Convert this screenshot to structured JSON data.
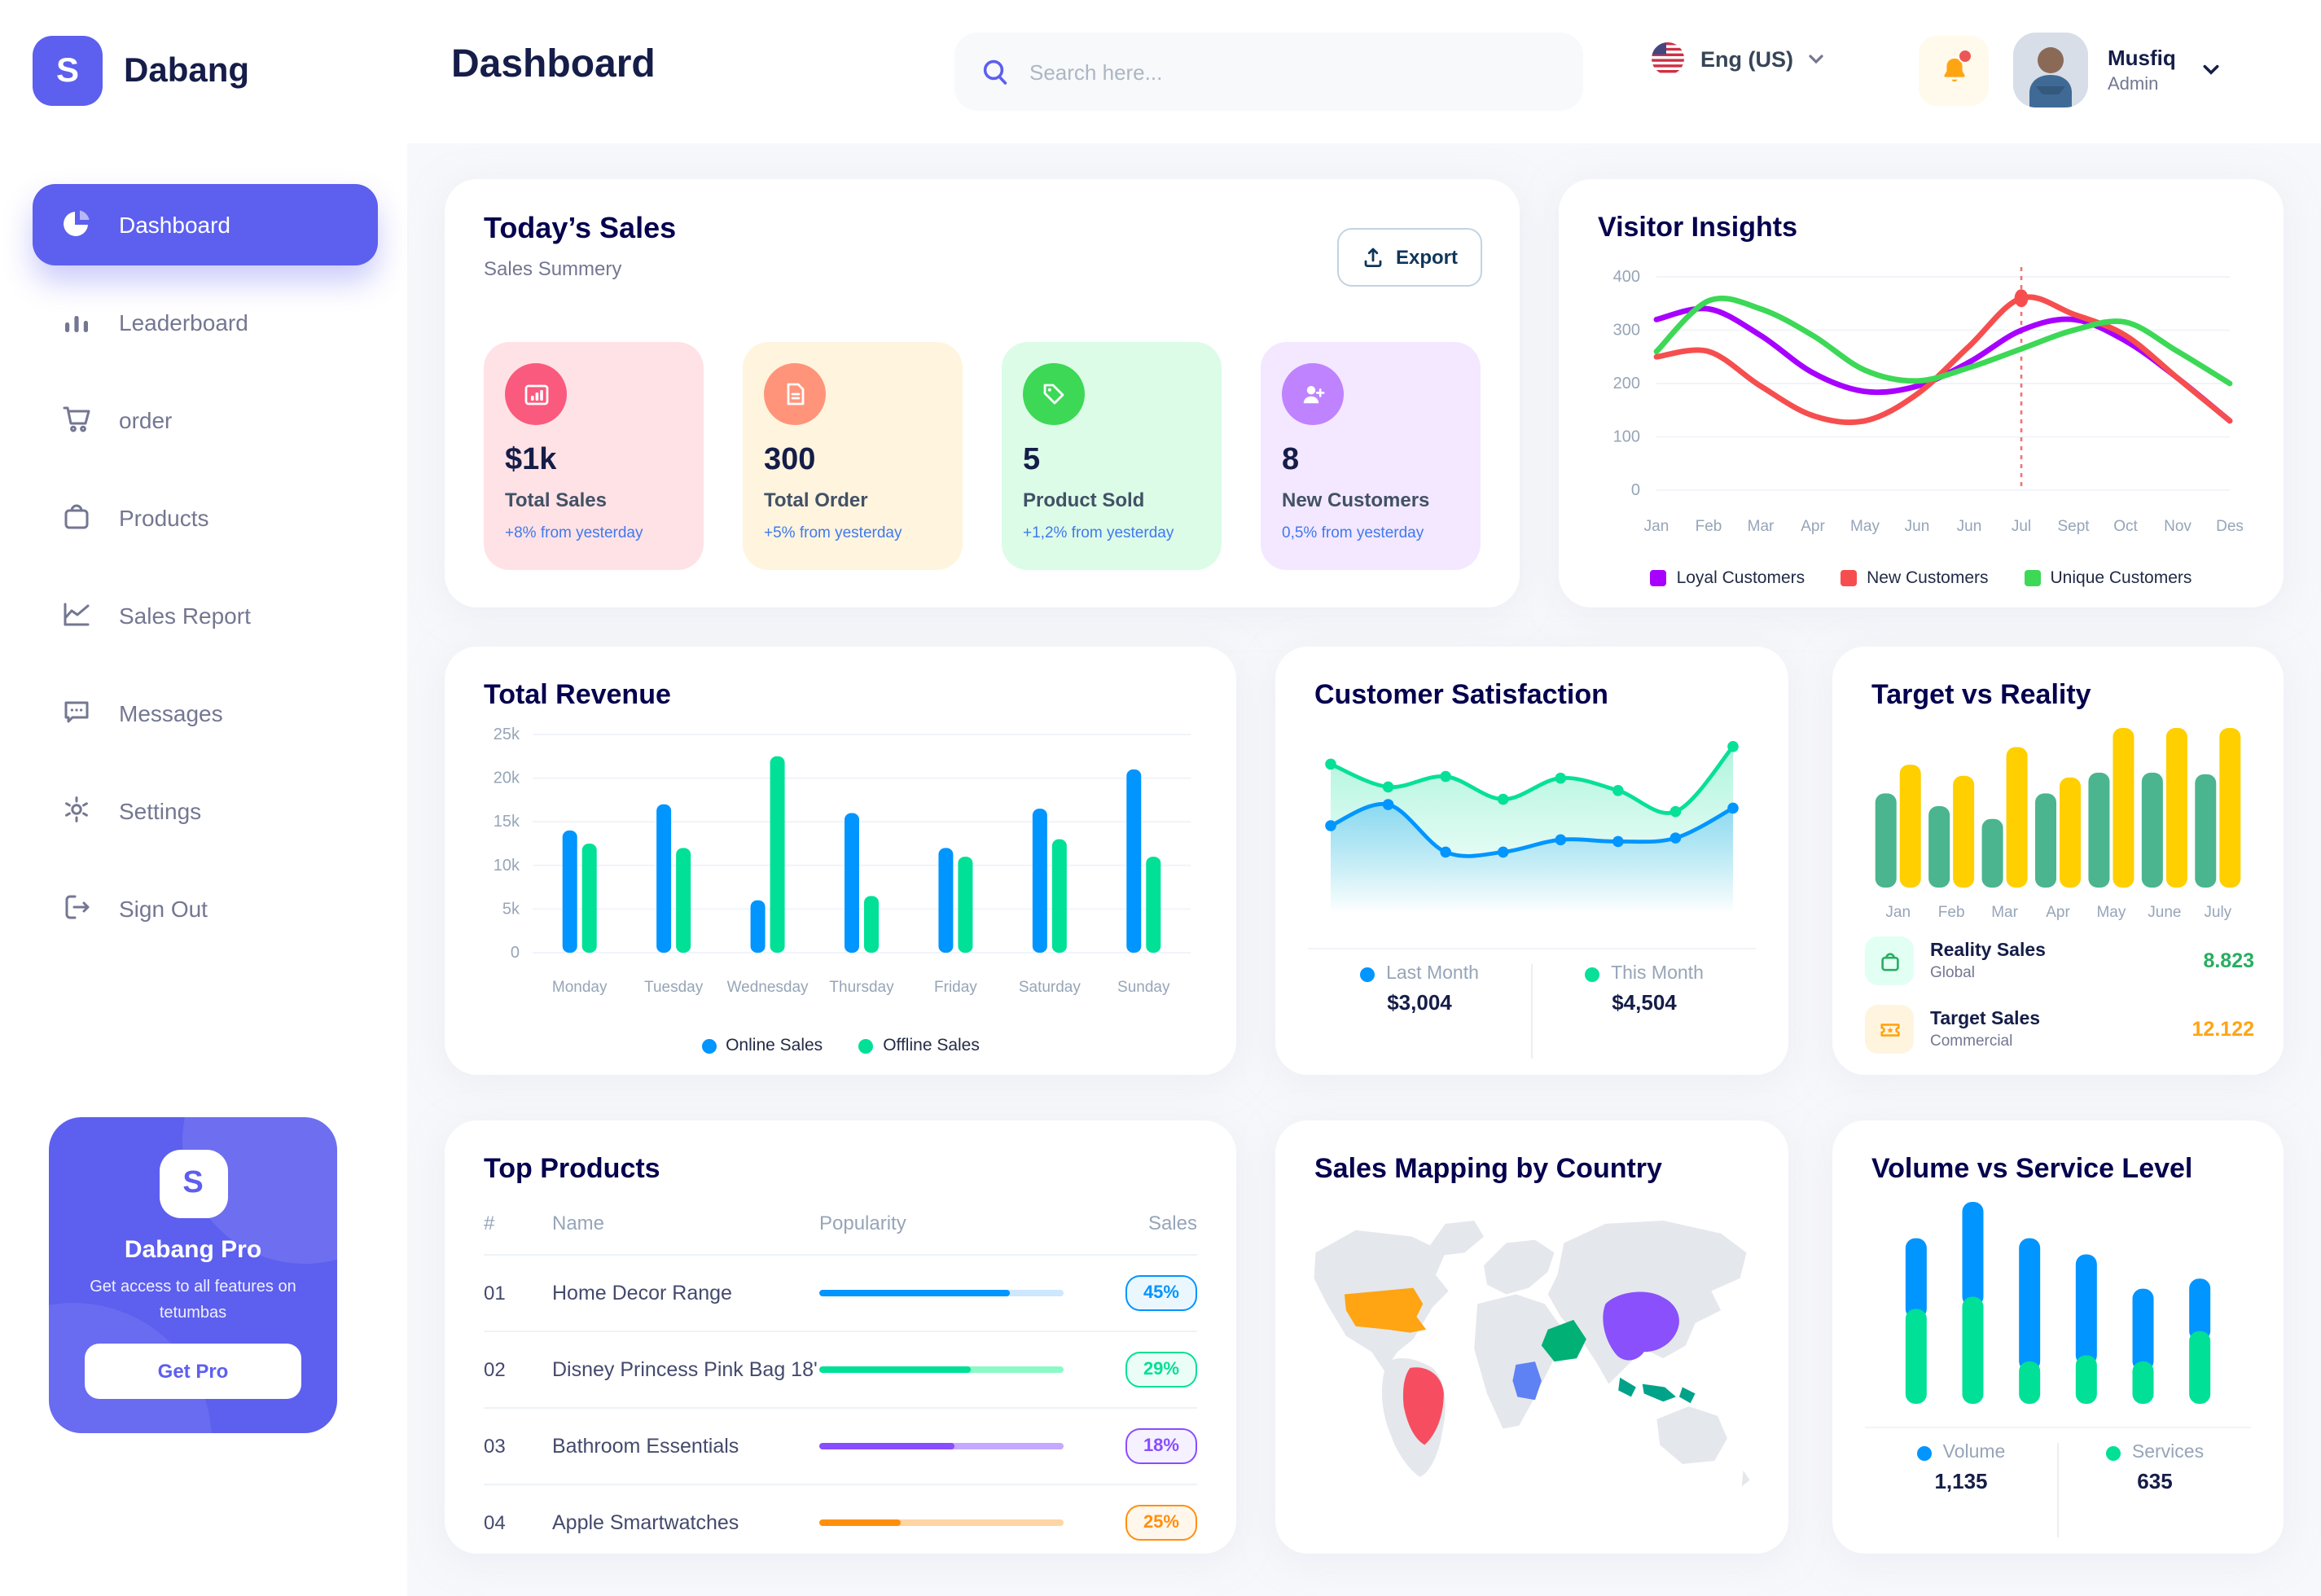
{
  "app": {
    "brand": "Dabang"
  },
  "header": {
    "page_title": "Dashboard",
    "search_placeholder": "Search here...",
    "language": "Eng (US)",
    "user": {
      "name": "Musfiq",
      "role": "Admin"
    }
  },
  "sidebar": {
    "items": [
      {
        "label": "Dashboard"
      },
      {
        "label": "Leaderboard"
      },
      {
        "label": "order"
      },
      {
        "label": "Products"
      },
      {
        "label": "Sales Report"
      },
      {
        "label": "Messages"
      },
      {
        "label": "Settings"
      },
      {
        "label": "Sign Out"
      }
    ],
    "promo": {
      "title": "Dabang Pro",
      "subtitle": "Get access to all features on tetumbas",
      "cta": "Get Pro"
    }
  },
  "today_sales": {
    "title": "Today’s Sales",
    "subtitle": "Sales Summery",
    "export_label": "Export",
    "delta_color": "#4079ED",
    "cards": [
      {
        "value": "$1k",
        "label": "Total Sales",
        "delta": "+8% from yesterday",
        "bg": "#FFE2E5",
        "icon_bg": "#FA5A7D",
        "icon": "bar-chart-icon"
      },
      {
        "value": "300",
        "label": "Total Order",
        "delta": "+5% from yesterday",
        "bg": "#FFF4DE",
        "icon_bg": "#FF947A",
        "icon": "file-icon"
      },
      {
        "value": "5",
        "label": "Product Sold",
        "delta": "+1,2% from yesterday",
        "bg": "#DCFCE7",
        "icon_bg": "#3CD856",
        "icon": "tag-icon"
      },
      {
        "value": "8",
        "label": "New Customers",
        "delta": "0,5% from yesterday",
        "bg": "#F3E8FF",
        "icon_bg": "#BF83FF",
        "icon": "user-plus-icon"
      }
    ]
  },
  "top_products": {
    "title": "Top Products",
    "columns": [
      "#",
      "Name",
      "Popularity",
      "Sales"
    ],
    "rows": [
      {
        "num": "01",
        "name": "Home Decor Range",
        "popularity": 78,
        "sales": "45%",
        "color": "#0095FF",
        "track": "#CDE7FF"
      },
      {
        "num": "02",
        "name": "Disney Princess Pink Bag 18'",
        "popularity": 62,
        "sales": "29%",
        "color": "#00E096",
        "track": "#8CFAC7"
      },
      {
        "num": "03",
        "name": "Bathroom Essentials",
        "popularity": 55,
        "sales": "18%",
        "color": "#884DFF",
        "track": "#C5A8FF"
      },
      {
        "num": "04",
        "name": "Apple Smartwatches",
        "popularity": 33,
        "sales": "25%",
        "color": "#FF8F0D",
        "track": "#FFD5A4"
      }
    ]
  },
  "sales_map": {
    "title": "Sales Mapping by Country",
    "countries": [
      {
        "name": "United States",
        "color": "#FFA412"
      },
      {
        "name": "Brazil",
        "color": "#F64E60"
      },
      {
        "name": "China",
        "color": "#8950FC"
      },
      {
        "name": "Saudi Arabia",
        "color": "#00B074"
      },
      {
        "name": "DR Congo",
        "color": "#5E81F4"
      },
      {
        "name": "Indonesia",
        "color": "#00A389"
      }
    ]
  },
  "chart_data": [
    {
      "id": "visitor_insights",
      "type": "line",
      "title": "Visitor Insights",
      "x": [
        "Jan",
        "Feb",
        "Mar",
        "Apr",
        "May",
        "Jun",
        "Jun",
        "Jul",
        "Sept",
        "Oct",
        "Nov",
        "Des"
      ],
      "ylim": [
        0,
        400
      ],
      "yticks": [
        0,
        100,
        200,
        300,
        400
      ],
      "grid": true,
      "legend_position": "bottom",
      "series": [
        {
          "name": "Loyal Customers",
          "color": "#A700FF",
          "values": [
            320,
            340,
            290,
            220,
            185,
            195,
            240,
            300,
            320,
            280,
            210,
            130
          ]
        },
        {
          "name": "New Customers",
          "color": "#F64E4E",
          "values": [
            250,
            260,
            195,
            140,
            130,
            180,
            270,
            360,
            330,
            290,
            210,
            130
          ]
        },
        {
          "name": "Unique Customers",
          "color": "#3CD856",
          "values": [
            260,
            355,
            340,
            290,
            225,
            205,
            230,
            265,
            300,
            315,
            260,
            200
          ]
        }
      ],
      "marker": {
        "series": 1,
        "index": 7
      }
    },
    {
      "id": "total_revenue",
      "type": "bar",
      "title": "Total Revenue",
      "categories": [
        "Monday",
        "Tuesday",
        "Wednesday",
        "Thursday",
        "Friday",
        "Saturday",
        "Sunday"
      ],
      "ylim": [
        0,
        25000
      ],
      "ytick_labels": [
        "0",
        "5k",
        "10k",
        "15k",
        "20k",
        "25k"
      ],
      "grid": true,
      "legend_position": "bottom",
      "series": [
        {
          "name": "Online Sales",
          "color": "#0095FF",
          "values": [
            14000,
            17000,
            6000,
            16000,
            12000,
            16500,
            21000
          ]
        },
        {
          "name": "Offline Sales",
          "color": "#00E096",
          "values": [
            12500,
            12000,
            22500,
            6500,
            11000,
            13000,
            11000
          ]
        }
      ]
    },
    {
      "id": "customer_satisfaction",
      "type": "area",
      "title": "Customer Satisfaction",
      "x": [
        1,
        2,
        3,
        4,
        5,
        6,
        7,
        8
      ],
      "ylim": [
        0,
        100
      ],
      "grid": false,
      "legend_position": "bottom",
      "series": [
        {
          "name": "Last Month",
          "color": "#0095FF",
          "total": "$3,004",
          "values": [
            50,
            62,
            35,
            35,
            42,
            41,
            43,
            60
          ]
        },
        {
          "name": "This Month",
          "color": "#07E098",
          "total": "$4,504",
          "values": [
            85,
            72,
            78,
            65,
            77,
            70,
            58,
            95
          ]
        }
      ]
    },
    {
      "id": "target_vs_reality",
      "type": "bar",
      "title": "Target vs Reality",
      "categories": [
        "Jan",
        "Feb",
        "Mar",
        "Apr",
        "May",
        "June",
        "July"
      ],
      "ylim": [
        0,
        100
      ],
      "grid": false,
      "legend_position": "bottom-list",
      "series": [
        {
          "name": "Reality Sales",
          "subtitle": "Global",
          "color": "#4AB58E",
          "total": "8.823",
          "total_color": "#27AE60",
          "icon_bg": "#E2FFF3",
          "values": [
            59,
            51,
            43,
            59,
            72,
            72,
            71
          ]
        },
        {
          "name": "Target Sales",
          "subtitle": "Commercial",
          "color": "#FFCF00",
          "total": "12.122",
          "total_color": "#FFA412",
          "icon_bg": "#FFF4DE",
          "values": [
            77,
            70,
            88,
            69,
            100,
            100,
            100
          ]
        }
      ]
    },
    {
      "id": "volume_vs_service",
      "type": "stacked-bar",
      "title": "Volume vs Service Level",
      "categories": [
        "1",
        "2",
        "3",
        "4",
        "5",
        "6"
      ],
      "ylim": [
        0,
        100
      ],
      "grid": false,
      "legend_position": "bottom",
      "series": [
        {
          "name": "Volume",
          "color": "#0095FF",
          "total": "1,135",
          "values": [
            35,
            47,
            61,
            50,
            36,
            26
          ]
        },
        {
          "name": "Services",
          "color": "#00E096",
          "total": "635",
          "values": [
            47,
            53,
            21,
            24,
            21,
            36
          ]
        }
      ]
    }
  ]
}
